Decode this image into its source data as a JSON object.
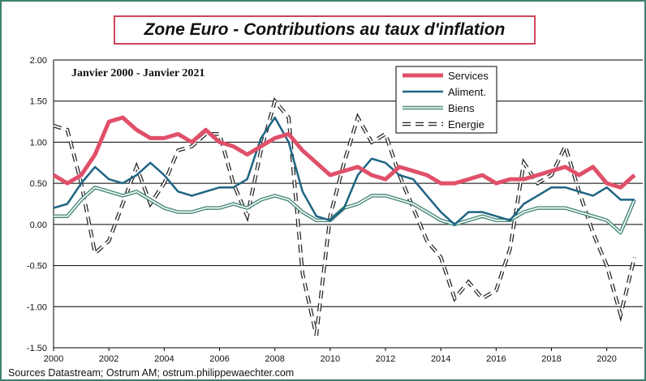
{
  "title": "Zone Euro - Contributions au taux d'inflation",
  "source": "Sources Datastream; Ostrum AM; ostrum.philippewaechter.com",
  "chart_data": {
    "type": "line",
    "subtitle": "Janvier 2000 - Janvier 2021",
    "x_ticks": [
      "2000",
      "2002",
      "2004",
      "2006",
      "2008",
      "2010",
      "2012",
      "2014",
      "2016",
      "2018",
      "2020"
    ],
    "y_ticks": [
      "2.00",
      "1.50",
      "1.00",
      "0.50",
      "0.00",
      "-0.50",
      "-1.00",
      "-1.50"
    ],
    "xlim": [
      2000,
      2021.3
    ],
    "ylim": [
      -1.5,
      2.0
    ],
    "grid": "horizontal",
    "legend_position": "top-right",
    "series": [
      {
        "name": "Services",
        "color": "#e0506a",
        "style": "thick",
        "x": [
          2000,
          2000.5,
          2001,
          2001.5,
          2002,
          2002.5,
          2003,
          2003.5,
          2004,
          2004.5,
          2005,
          2005.5,
          2006,
          2006.5,
          2007,
          2007.5,
          2008,
          2008.5,
          2009,
          2009.5,
          2010,
          2010.5,
          2011,
          2011.5,
          2012,
          2012.5,
          2013,
          2013.5,
          2014,
          2014.5,
          2015,
          2015.5,
          2016,
          2016.5,
          2017,
          2017.5,
          2018,
          2018.5,
          2019,
          2019.5,
          2020,
          2020.5,
          2021
        ],
        "y": [
          0.6,
          0.5,
          0.6,
          0.85,
          1.25,
          1.3,
          1.15,
          1.05,
          1.05,
          1.1,
          1.0,
          1.15,
          1.0,
          0.95,
          0.85,
          0.95,
          1.05,
          1.1,
          0.9,
          0.75,
          0.6,
          0.65,
          0.7,
          0.6,
          0.55,
          0.7,
          0.65,
          0.6,
          0.5,
          0.5,
          0.55,
          0.6,
          0.5,
          0.55,
          0.55,
          0.6,
          0.65,
          0.7,
          0.6,
          0.7,
          0.5,
          0.45,
          0.6
        ]
      },
      {
        "name": "Aliment.",
        "color": "#1e6483",
        "style": "line",
        "x": [
          2000,
          2000.5,
          2001,
          2001.5,
          2002,
          2002.5,
          2003,
          2003.5,
          2004,
          2004.5,
          2005,
          2005.5,
          2006,
          2006.5,
          2007,
          2007.5,
          2008,
          2008.5,
          2009,
          2009.5,
          2010,
          2010.5,
          2011,
          2011.5,
          2012,
          2012.5,
          2013,
          2013.5,
          2014,
          2014.5,
          2015,
          2015.5,
          2016,
          2016.5,
          2017,
          2017.5,
          2018,
          2018.5,
          2019,
          2019.5,
          2020,
          2020.5,
          2021
        ],
        "y": [
          0.2,
          0.25,
          0.5,
          0.7,
          0.55,
          0.5,
          0.6,
          0.75,
          0.6,
          0.4,
          0.35,
          0.4,
          0.45,
          0.45,
          0.55,
          1.05,
          1.3,
          1.0,
          0.4,
          0.1,
          0.05,
          0.2,
          0.6,
          0.8,
          0.75,
          0.6,
          0.55,
          0.35,
          0.15,
          0.0,
          0.15,
          0.15,
          0.1,
          0.05,
          0.25,
          0.35,
          0.45,
          0.45,
          0.4,
          0.35,
          0.45,
          0.3,
          0.3
        ]
      },
      {
        "name": "Biens",
        "color": "#4a8a7c",
        "style": "double",
        "x": [
          2000,
          2000.5,
          2001,
          2001.5,
          2002,
          2002.5,
          2003,
          2003.5,
          2004,
          2004.5,
          2005,
          2005.5,
          2006,
          2006.5,
          2007,
          2007.5,
          2008,
          2008.5,
          2009,
          2009.5,
          2010,
          2010.5,
          2011,
          2011.5,
          2012,
          2012.5,
          2013,
          2013.5,
          2014,
          2014.5,
          2015,
          2015.5,
          2016,
          2016.5,
          2017,
          2017.5,
          2018,
          2018.5,
          2019,
          2019.5,
          2020,
          2020.5,
          2021
        ],
        "y": [
          0.1,
          0.1,
          0.3,
          0.45,
          0.4,
          0.35,
          0.4,
          0.3,
          0.2,
          0.15,
          0.15,
          0.2,
          0.2,
          0.25,
          0.2,
          0.3,
          0.35,
          0.3,
          0.15,
          0.05,
          0.05,
          0.2,
          0.25,
          0.35,
          0.35,
          0.3,
          0.25,
          0.15,
          0.05,
          0.0,
          0.05,
          0.1,
          0.05,
          0.05,
          0.15,
          0.2,
          0.2,
          0.2,
          0.15,
          0.1,
          0.05,
          -0.1,
          0.3
        ]
      },
      {
        "name": "Energie",
        "color": "#222222",
        "style": "dash-outline",
        "x": [
          2000,
          2000.5,
          2001,
          2001.5,
          2002,
          2002.5,
          2003,
          2003.5,
          2004,
          2004.5,
          2005,
          2005.5,
          2006,
          2006.5,
          2007,
          2007.5,
          2008,
          2008.5,
          2009,
          2009.5,
          2010,
          2010.5,
          2011,
          2011.5,
          2012,
          2012.5,
          2013,
          2013.5,
          2014,
          2014.5,
          2015,
          2015.5,
          2016,
          2016.5,
          2017,
          2017.5,
          2018,
          2018.5,
          2019,
          2019.5,
          2020,
          2020.5,
          2021
        ],
        "y": [
          1.2,
          1.15,
          0.5,
          -0.35,
          -0.2,
          0.25,
          0.7,
          0.25,
          0.5,
          0.9,
          0.95,
          1.1,
          1.1,
          0.5,
          0.1,
          0.9,
          1.5,
          1.3,
          -0.6,
          -1.35,
          0.1,
          0.75,
          1.3,
          1.0,
          1.1,
          0.6,
          0.2,
          -0.2,
          -0.4,
          -0.9,
          -0.7,
          -0.9,
          -0.8,
          -0.3,
          0.75,
          0.5,
          0.6,
          0.95,
          0.4,
          -0.1,
          -0.5,
          -1.1,
          -0.4
        ]
      }
    ]
  }
}
